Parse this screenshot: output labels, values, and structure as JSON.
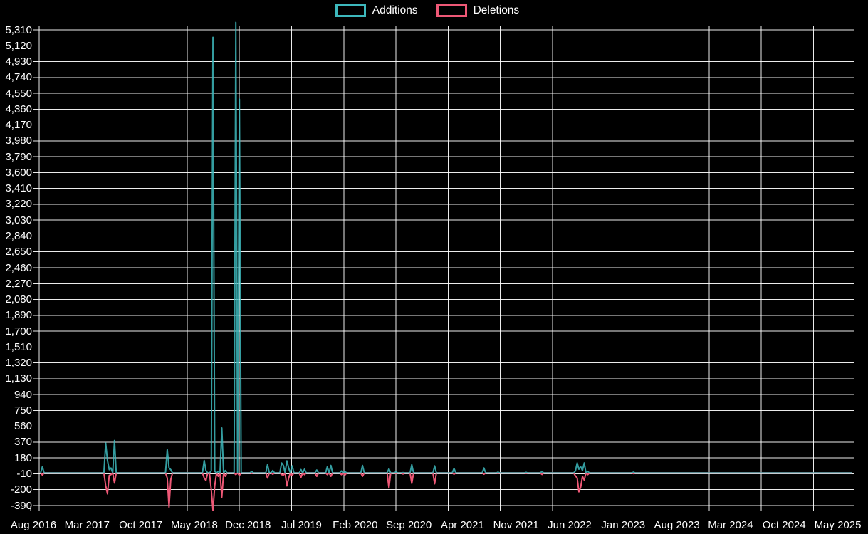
{
  "page": {
    "background": "#000000",
    "text_color": "#ffffff",
    "grid_color": "#ffffff"
  },
  "legend": {
    "additions_label": "Additions",
    "deletions_label": "Deletions"
  },
  "chart_data": {
    "type": "line",
    "title": "",
    "xlabel": "",
    "ylabel": "",
    "grid": true,
    "legend_position": "top-center",
    "series": [
      {
        "name": "Additions",
        "color": "#3db8bc"
      },
      {
        "name": "Deletions",
        "color": "#ee5876"
      }
    ],
    "x_axis": {
      "start_date": "2016-08-21",
      "end_date": "2025-06-22",
      "tick_labels": [
        "Aug 2016",
        "Mar 2017",
        "Oct 2017",
        "May 2018",
        "Dec 2018",
        "Jul 2019",
        "Feb 2020",
        "Sep 2020",
        "Apr 2021",
        "Nov 2021",
        "Jun 2022",
        "Jan 2023",
        "Aug 2023",
        "Mar 2024",
        "Oct 2024",
        "May 2025"
      ]
    },
    "y_axis": {
      "min": -390,
      "max": 5310,
      "step": 190,
      "tick_labels": [
        "5,310",
        "5,120",
        "4,930",
        "4,740",
        "4,550",
        "4,360",
        "4,170",
        "3,980",
        "3,790",
        "3,600",
        "3,410",
        "3,220",
        "3,030",
        "2,840",
        "2,650",
        "2,460",
        "2,270",
        "2,080",
        "1,890",
        "1,700",
        "1,510",
        "1,320",
        "1,130",
        "940",
        "750",
        "560",
        "370",
        "180",
        "-10",
        "-200",
        "-390"
      ]
    },
    "points_format": [
      "week_date",
      "additions",
      "deletions"
    ],
    "points_note": "weekly series; weeks not listed have additions 0 and deletions 0",
    "points": [
      [
        "2016-08-28",
        75,
        -25
      ],
      [
        "2017-05-07",
        360,
        -150
      ],
      [
        "2017-05-14",
        150,
        -250
      ],
      [
        "2017-05-21",
        40,
        -30
      ],
      [
        "2017-05-28",
        60,
        -20
      ],
      [
        "2017-06-11",
        390,
        -120
      ],
      [
        "2018-01-07",
        280,
        -60
      ],
      [
        "2018-01-14",
        60,
        -410
      ],
      [
        "2018-01-21",
        40,
        -80
      ],
      [
        "2018-06-03",
        150,
        -60
      ],
      [
        "2018-06-10",
        30,
        -90
      ],
      [
        "2018-07-01",
        25,
        -200
      ],
      [
        "2018-07-08",
        5220,
        -450
      ],
      [
        "2018-07-15",
        20,
        -150
      ],
      [
        "2018-07-29",
        20,
        -40
      ],
      [
        "2018-08-12",
        540,
        -290
      ],
      [
        "2018-08-26",
        30,
        -40
      ],
      [
        "2018-10-07",
        5400,
        -20
      ],
      [
        "2018-10-21",
        4480,
        -30
      ],
      [
        "2018-12-09",
        20,
        -5
      ],
      [
        "2019-02-10",
        100,
        -60
      ],
      [
        "2019-03-03",
        30,
        -15
      ],
      [
        "2019-04-07",
        120,
        -20
      ],
      [
        "2019-04-14",
        90,
        -25
      ],
      [
        "2019-04-28",
        145,
        -155
      ],
      [
        "2019-05-05",
        60,
        -60
      ],
      [
        "2019-05-19",
        85,
        -30
      ],
      [
        "2019-06-23",
        40,
        -50
      ],
      [
        "2019-07-07",
        45,
        -20
      ],
      [
        "2019-08-25",
        35,
        -40
      ],
      [
        "2019-10-06",
        75,
        -20
      ],
      [
        "2019-10-20",
        90,
        -40
      ],
      [
        "2019-12-01",
        25,
        -20
      ],
      [
        "2019-12-15",
        20,
        -25
      ],
      [
        "2020-02-23",
        90,
        -40
      ],
      [
        "2020-06-07",
        50,
        -180
      ],
      [
        "2020-07-05",
        15,
        -5
      ],
      [
        "2020-08-02",
        5,
        -12
      ],
      [
        "2020-09-06",
        100,
        -125
      ],
      [
        "2020-12-06",
        85,
        -130
      ],
      [
        "2021-02-21",
        55,
        -15
      ],
      [
        "2021-06-20",
        60,
        -15
      ],
      [
        "2021-08-15",
        10,
        -5
      ],
      [
        "2021-12-05",
        8,
        -4
      ],
      [
        "2022-02-06",
        18,
        -18
      ],
      [
        "2022-06-19",
        25,
        -35
      ],
      [
        "2022-06-26",
        120,
        -60
      ],
      [
        "2022-07-03",
        45,
        -225
      ],
      [
        "2022-07-10",
        75,
        -170
      ],
      [
        "2022-07-17",
        30,
        -40
      ],
      [
        "2022-07-24",
        120,
        -85
      ],
      [
        "2022-08-07",
        20,
        -20
      ],
      [
        "2023-02-05",
        10,
        -8
      ]
    ]
  }
}
